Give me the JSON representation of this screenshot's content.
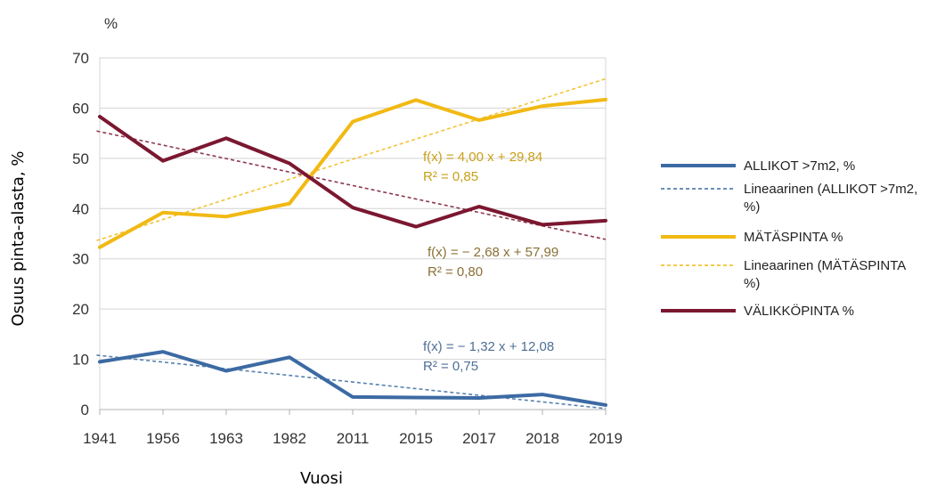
{
  "chart_data": {
    "type": "line",
    "ylabel": "Osuus pinta-alasta, %",
    "xlabel": "Vuosi",
    "unit_label": "%",
    "categories": [
      "1941",
      "1956",
      "1963",
      "1982",
      "2011",
      "2015",
      "2017",
      "2018",
      "2019"
    ],
    "ylim": [
      0,
      70
    ],
    "yticks": [
      0,
      10,
      20,
      30,
      40,
      50,
      60,
      70
    ],
    "grid": "horizontal",
    "legend_position": "right",
    "series": [
      {
        "name": "ALLIKOT >7m2, %",
        "color": "#3c6aa3",
        "values": [
          9.5,
          11.5,
          7.7,
          10.4,
          2.5,
          2.4,
          2.3,
          3.0,
          0.9
        ],
        "trend": {
          "name": "Lineaarinen (ALLIKOT >7m2, %)",
          "slope": -1.32,
          "intercept": 12.08,
          "equation": "f(x) = − 1,32 x + 12,08",
          "r2": "R² = 0,75"
        }
      },
      {
        "name": "MÄTÄSPINTA %",
        "color": "#f1b913",
        "values": [
          32.3,
          39.2,
          38.4,
          41.0,
          57.3,
          61.6,
          57.6,
          60.4,
          61.7
        ],
        "trend": {
          "name": "Lineaarinen (MÄTÄSPINTA %)",
          "slope": 4.0,
          "intercept": 29.84,
          "equation": "f(x) = 4,00 x + 29,84",
          "r2": "R² = 0,85"
        }
      },
      {
        "name": "VÄLIKKÖPINTA %",
        "color": "#7b1730",
        "values": [
          58.3,
          49.5,
          54.0,
          49.0,
          40.2,
          36.4,
          40.4,
          36.8,
          37.6
        ],
        "trend": {
          "name": "",
          "slope": -2.68,
          "intercept": 57.99,
          "equation": "f(x) = − 2,68 x + 57,99",
          "r2": "R² = 0,80"
        }
      }
    ],
    "legend": [
      {
        "label": "ALLIKOT >7m2, %",
        "color": "#3c6aa3",
        "style": "solid"
      },
      {
        "label": "Lineaarinen (ALLIKOT >7m2, %)",
        "color": "#3c6aa3",
        "style": "dashed"
      },
      {
        "label": "MÄTÄSPINTA %",
        "color": "#f1b913",
        "style": "solid"
      },
      {
        "label": "Lineaarinen (MÄTÄSPINTA %)",
        "color": "#f1b913",
        "style": "dashed"
      },
      {
        "label": "VÄLIKKÖPINTA %",
        "color": "#7b1730",
        "style": "solid"
      }
    ]
  }
}
